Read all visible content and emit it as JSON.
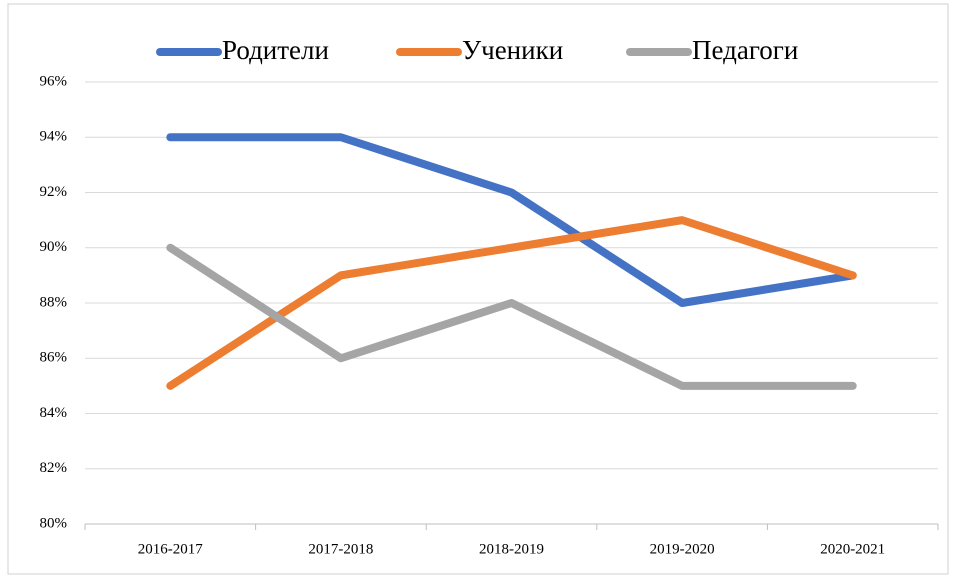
{
  "chart_data": {
    "type": "line",
    "categories": [
      "2016-2017",
      "2017-2018",
      "2018-2019",
      "2019-2020",
      "2020-2021"
    ],
    "series": [
      {
        "name": "Родители",
        "color": "#4472c4",
        "values": [
          94,
          94,
          92,
          88,
          89
        ]
      },
      {
        "name": "Ученики",
        "color": "#ed7d31",
        "values": [
          85,
          89,
          90,
          91,
          89
        ]
      },
      {
        "name": "Педагоги",
        "color": "#a5a5a5",
        "values": [
          90,
          86,
          88,
          85,
          85
        ]
      }
    ],
    "ylim": [
      80,
      96
    ],
    "yticks": [
      {
        "value": 80,
        "label": "80%"
      },
      {
        "value": 82,
        "label": "82%"
      },
      {
        "value": 84,
        "label": "84%"
      },
      {
        "value": 86,
        "label": "86%"
      },
      {
        "value": 88,
        "label": "88%"
      },
      {
        "value": 90,
        "label": "90%"
      },
      {
        "value": 92,
        "label": "92%"
      },
      {
        "value": 94,
        "label": "94%"
      },
      {
        "value": 96,
        "label": "96%"
      }
    ],
    "grid": true,
    "legend": "top"
  }
}
